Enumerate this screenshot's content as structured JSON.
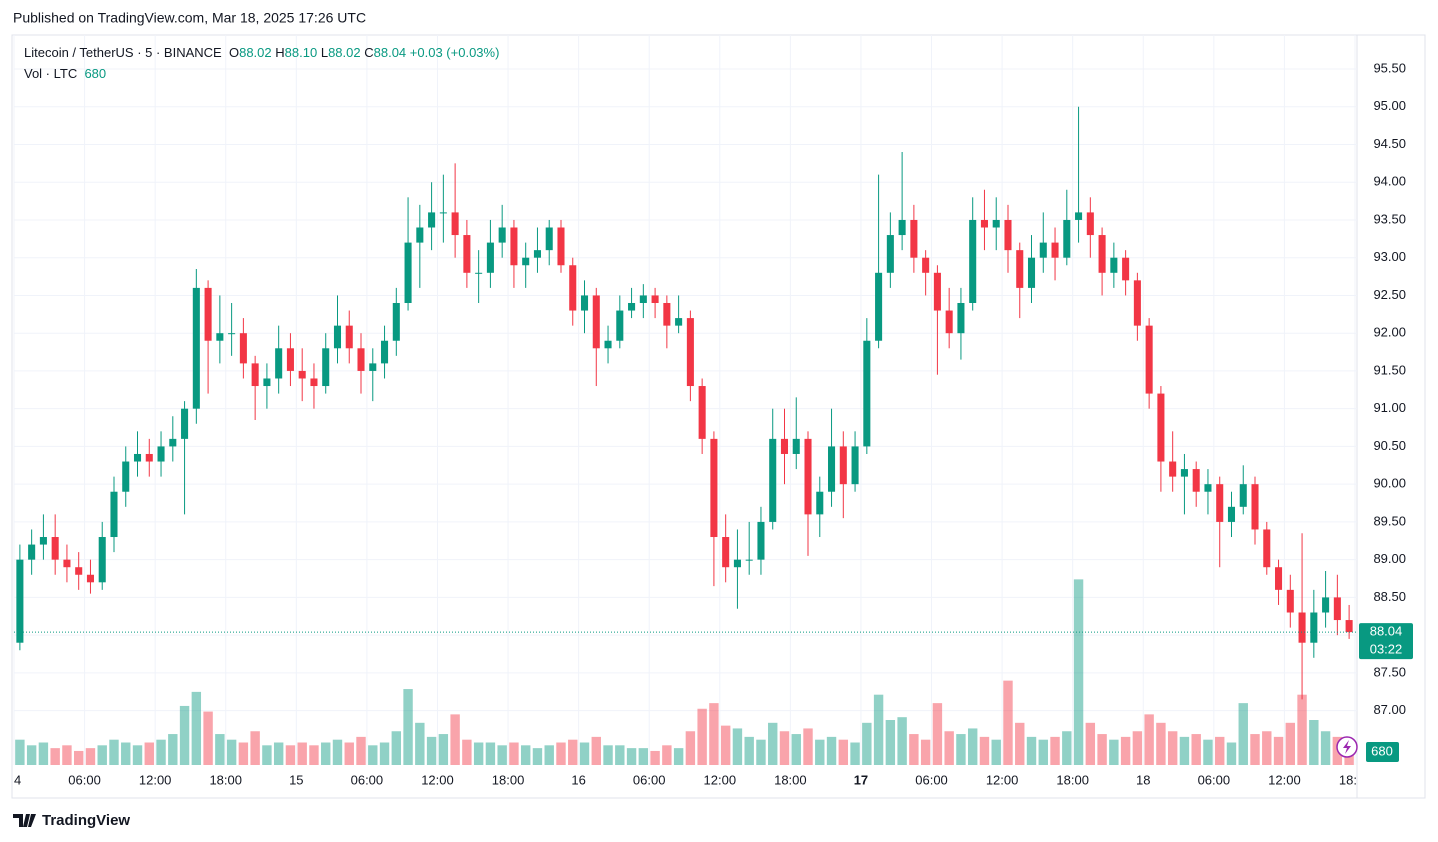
{
  "published": "Published on TradingView.com, Mar 18, 2025 17:26 UTC",
  "brand": "TradingView",
  "chart_data": {
    "type": "candlestick",
    "title": "Litecoin / TetherUS · 5 · BINANCE",
    "ohlc_legend": [
      {
        "label": "O",
        "value": "88.02"
      },
      {
        "label": "H",
        "value": "88.10"
      },
      {
        "label": "L",
        "value": "88.02"
      },
      {
        "label": "C",
        "value": "88.04"
      }
    ],
    "change": "+0.03 (+0.03%)",
    "volume_legend": {
      "label": "Vol · LTC",
      "value": 680
    },
    "countdown": "03:22",
    "up_color": "#089981",
    "down_color": "#f23645",
    "grid": true,
    "xlim": [
      0,
      114
    ],
    "xticks": [
      {
        "value": 0,
        "label": "4"
      },
      {
        "value": 6,
        "label": "06:00"
      },
      {
        "value": 12,
        "label": "12:00"
      },
      {
        "value": 18,
        "label": "18:00"
      },
      {
        "value": 24,
        "label": "15"
      },
      {
        "value": 30,
        "label": "06:00"
      },
      {
        "value": 36,
        "label": "12:00"
      },
      {
        "value": 42,
        "label": "18:00"
      },
      {
        "value": 48,
        "label": "16"
      },
      {
        "value": 54,
        "label": "06:00"
      },
      {
        "value": 60,
        "label": "12:00"
      },
      {
        "value": 66,
        "label": "18:00"
      },
      {
        "value": 72,
        "label": "17",
        "bold": true
      },
      {
        "value": 78,
        "label": "06:00"
      },
      {
        "value": 84,
        "label": "12:00"
      },
      {
        "value": 90,
        "label": "18:00"
      },
      {
        "value": 96,
        "label": "18"
      },
      {
        "value": 102,
        "label": "06:00"
      },
      {
        "value": 108,
        "label": "12:00"
      },
      {
        "value": 114,
        "label": "18:"
      }
    ],
    "ylim": [
      86.28,
      95.95
    ],
    "yticks": [
      {
        "value": 87,
        "label": "87.00"
      },
      {
        "value": 87.5,
        "label": "87.50"
      },
      {
        "value": 88,
        "label": "88.00"
      },
      {
        "value": 88.5,
        "label": "88.50"
      },
      {
        "value": 89,
        "label": "89.00"
      },
      {
        "value": 89.5,
        "label": "89.50"
      },
      {
        "value": 90,
        "label": "90.00"
      },
      {
        "value": 90.5,
        "label": "90.50"
      },
      {
        "value": 91,
        "label": "91.00"
      },
      {
        "value": 91.5,
        "label": "91.50"
      },
      {
        "value": 92,
        "label": "92.00"
      },
      {
        "value": 92.5,
        "label": "92.50"
      },
      {
        "value": 93,
        "label": "93.00"
      },
      {
        "value": 93.5,
        "label": "93.50"
      },
      {
        "value": 94,
        "label": "94.00"
      },
      {
        "value": 94.5,
        "label": "94.50"
      },
      {
        "value": 95,
        "label": "95.00"
      },
      {
        "value": 95.5,
        "label": "95.50"
      }
    ],
    "vlim": [
      0,
      8000
    ],
    "ohlc": [
      [
        87.9,
        89.2,
        87.8,
        89.0
      ],
      [
        89.0,
        89.4,
        88.8,
        89.2
      ],
      [
        89.2,
        89.6,
        89.0,
        89.3
      ],
      [
        89.3,
        89.6,
        88.8,
        89.0
      ],
      [
        89.0,
        89.2,
        88.7,
        88.9
      ],
      [
        88.9,
        89.1,
        88.6,
        88.8
      ],
      [
        88.8,
        89.0,
        88.55,
        88.7
      ],
      [
        88.7,
        89.5,
        88.6,
        89.3
      ],
      [
        89.3,
        90.1,
        89.1,
        89.9
      ],
      [
        89.9,
        90.5,
        89.7,
        90.3
      ],
      [
        90.3,
        90.7,
        90.1,
        90.4
      ],
      [
        90.4,
        90.6,
        90.1,
        90.3
      ],
      [
        90.3,
        90.7,
        90.1,
        90.5
      ],
      [
        90.5,
        90.9,
        90.3,
        90.6
      ],
      [
        90.6,
        91.1,
        89.6,
        91.0
      ],
      [
        91.0,
        92.85,
        90.8,
        92.6
      ],
      [
        92.6,
        92.7,
        91.2,
        91.9
      ],
      [
        91.9,
        92.5,
        91.6,
        92.0
      ],
      [
        92.0,
        92.4,
        91.7,
        92.0
      ],
      [
        92.0,
        92.2,
        91.4,
        91.6
      ],
      [
        91.6,
        91.7,
        90.85,
        91.3
      ],
      [
        91.3,
        91.6,
        91.0,
        91.4
      ],
      [
        91.4,
        92.1,
        91.2,
        91.8
      ],
      [
        91.8,
        92.0,
        91.3,
        91.5
      ],
      [
        91.5,
        91.8,
        91.1,
        91.4
      ],
      [
        91.4,
        91.6,
        91.0,
        91.3
      ],
      [
        91.3,
        92.0,
        91.2,
        91.8
      ],
      [
        91.8,
        92.5,
        91.6,
        92.1
      ],
      [
        92.1,
        92.3,
        91.6,
        91.8
      ],
      [
        91.8,
        92.0,
        91.2,
        91.5
      ],
      [
        91.5,
        91.8,
        91.1,
        91.6
      ],
      [
        91.6,
        92.1,
        91.4,
        91.9
      ],
      [
        91.9,
        92.6,
        91.7,
        92.4
      ],
      [
        92.4,
        93.8,
        92.3,
        93.2
      ],
      [
        93.2,
        93.7,
        92.6,
        93.4
      ],
      [
        93.4,
        94.0,
        93.1,
        93.6
      ],
      [
        93.6,
        94.1,
        93.2,
        93.6
      ],
      [
        93.6,
        94.25,
        93.0,
        93.3
      ],
      [
        93.3,
        93.5,
        92.6,
        92.8
      ],
      [
        92.8,
        93.1,
        92.4,
        92.8
      ],
      [
        92.8,
        93.5,
        92.6,
        93.2
      ],
      [
        93.2,
        93.7,
        93.0,
        93.4
      ],
      [
        93.4,
        93.5,
        92.6,
        92.9
      ],
      [
        92.9,
        93.2,
        92.6,
        93.0
      ],
      [
        93.0,
        93.4,
        92.8,
        93.1
      ],
      [
        93.1,
        93.5,
        92.9,
        93.4
      ],
      [
        93.4,
        93.5,
        92.8,
        92.9
      ],
      [
        92.9,
        93.0,
        92.1,
        92.3
      ],
      [
        92.3,
        92.7,
        92.0,
        92.5
      ],
      [
        92.5,
        92.6,
        91.3,
        91.8
      ],
      [
        91.8,
        92.1,
        91.6,
        91.9
      ],
      [
        91.9,
        92.5,
        91.8,
        92.3
      ],
      [
        92.3,
        92.6,
        92.2,
        92.4
      ],
      [
        92.4,
        92.65,
        92.2,
        92.5
      ],
      [
        92.5,
        92.6,
        92.2,
        92.4
      ],
      [
        92.4,
        92.5,
        91.8,
        92.1
      ],
      [
        92.1,
        92.5,
        92.0,
        92.2
      ],
      [
        92.2,
        92.3,
        91.1,
        91.3
      ],
      [
        91.3,
        91.4,
        90.4,
        90.6
      ],
      [
        90.6,
        90.7,
        88.65,
        89.3
      ],
      [
        89.3,
        89.6,
        88.7,
        88.9
      ],
      [
        88.9,
        89.4,
        88.35,
        89.0
      ],
      [
        89.0,
        89.5,
        88.8,
        89.0
      ],
      [
        89.0,
        89.7,
        88.8,
        89.5
      ],
      [
        89.5,
        91.0,
        89.4,
        90.6
      ],
      [
        90.6,
        91.0,
        90.0,
        90.4
      ],
      [
        90.4,
        91.15,
        90.2,
        90.6
      ],
      [
        90.6,
        90.7,
        89.05,
        89.6
      ],
      [
        89.6,
        90.1,
        89.3,
        89.9
      ],
      [
        89.9,
        91.0,
        89.7,
        90.5
      ],
      [
        90.5,
        90.7,
        89.55,
        90.0
      ],
      [
        90.0,
        90.7,
        89.9,
        90.5
      ],
      [
        90.5,
        92.2,
        90.4,
        91.9
      ],
      [
        91.9,
        94.1,
        91.8,
        92.8
      ],
      [
        92.8,
        93.6,
        92.6,
        93.3
      ],
      [
        93.3,
        94.4,
        93.1,
        93.5
      ],
      [
        93.5,
        93.7,
        92.8,
        93.0
      ],
      [
        93.0,
        93.1,
        92.5,
        92.8
      ],
      [
        92.8,
        92.9,
        91.45,
        92.3
      ],
      [
        92.3,
        92.6,
        91.8,
        92.0
      ],
      [
        92.0,
        92.6,
        91.65,
        92.4
      ],
      [
        92.4,
        93.8,
        92.3,
        93.5
      ],
      [
        93.5,
        93.9,
        93.1,
        93.4
      ],
      [
        93.4,
        93.8,
        93.1,
        93.5
      ],
      [
        93.5,
        93.7,
        92.8,
        93.1
      ],
      [
        93.1,
        93.2,
        92.2,
        92.6
      ],
      [
        92.6,
        93.3,
        92.4,
        93.0
      ],
      [
        93.0,
        93.6,
        92.8,
        93.2
      ],
      [
        93.2,
        93.4,
        92.7,
        93.0
      ],
      [
        93.0,
        93.9,
        92.9,
        93.5
      ],
      [
        93.5,
        95.0,
        93.2,
        93.6
      ],
      [
        93.6,
        93.8,
        93.0,
        93.3
      ],
      [
        93.3,
        93.4,
        92.5,
        92.8
      ],
      [
        92.8,
        93.2,
        92.6,
        93.0
      ],
      [
        93.0,
        93.1,
        92.5,
        92.7
      ],
      [
        92.7,
        92.8,
        91.9,
        92.1
      ],
      [
        92.1,
        92.2,
        91.0,
        91.2
      ],
      [
        91.2,
        91.3,
        89.9,
        90.3
      ],
      [
        90.3,
        90.7,
        89.9,
        90.1
      ],
      [
        90.1,
        90.4,
        89.6,
        90.2
      ],
      [
        90.2,
        90.3,
        89.7,
        89.9
      ],
      [
        89.9,
        90.2,
        89.6,
        90.0
      ],
      [
        90.0,
        90.1,
        88.9,
        89.5
      ],
      [
        89.5,
        89.9,
        89.3,
        89.7
      ],
      [
        89.7,
        90.25,
        89.6,
        90.0
      ],
      [
        90.0,
        90.1,
        89.2,
        89.4
      ],
      [
        89.4,
        89.5,
        88.8,
        88.9
      ],
      [
        88.9,
        89.0,
        88.4,
        88.6
      ],
      [
        88.6,
        88.8,
        88.1,
        88.3
      ],
      [
        88.3,
        89.35,
        87.15,
        87.9
      ],
      [
        87.9,
        88.6,
        87.7,
        88.3
      ],
      [
        88.3,
        88.85,
        88.1,
        88.5
      ],
      [
        88.5,
        88.8,
        88.0,
        88.2
      ],
      [
        88.2,
        88.4,
        87.95,
        88.04
      ]
    ],
    "volume": [
      900,
      700,
      800,
      600,
      700,
      500,
      600,
      700,
      900,
      800,
      700,
      800,
      900,
      1100,
      2100,
      2600,
      1900,
      1100,
      900,
      800,
      1200,
      700,
      800,
      700,
      800,
      700,
      800,
      900,
      800,
      1000,
      700,
      800,
      1200,
      2700,
      1500,
      1000,
      1100,
      1800,
      900,
      800,
      800,
      700,
      800,
      700,
      600,
      700,
      800,
      900,
      800,
      1000,
      700,
      700,
      600,
      600,
      500,
      700,
      600,
      1200,
      2000,
      2200,
      1400,
      1300,
      1000,
      900,
      1500,
      1200,
      1100,
      1300,
      900,
      1000,
      900,
      800,
      1500,
      2500,
      1600,
      1700,
      1100,
      900,
      2200,
      1200,
      1100,
      1300,
      1000,
      900,
      3000,
      1500,
      1000,
      900,
      1000,
      1200,
      6600,
      1500,
      1100,
      900,
      1000,
      1200,
      1800,
      1500,
      1200,
      1000,
      1100,
      900,
      1000,
      800,
      2200,
      1100,
      1200,
      1000,
      1500,
      2500,
      1600,
      1200,
      1000,
      680
    ]
  }
}
